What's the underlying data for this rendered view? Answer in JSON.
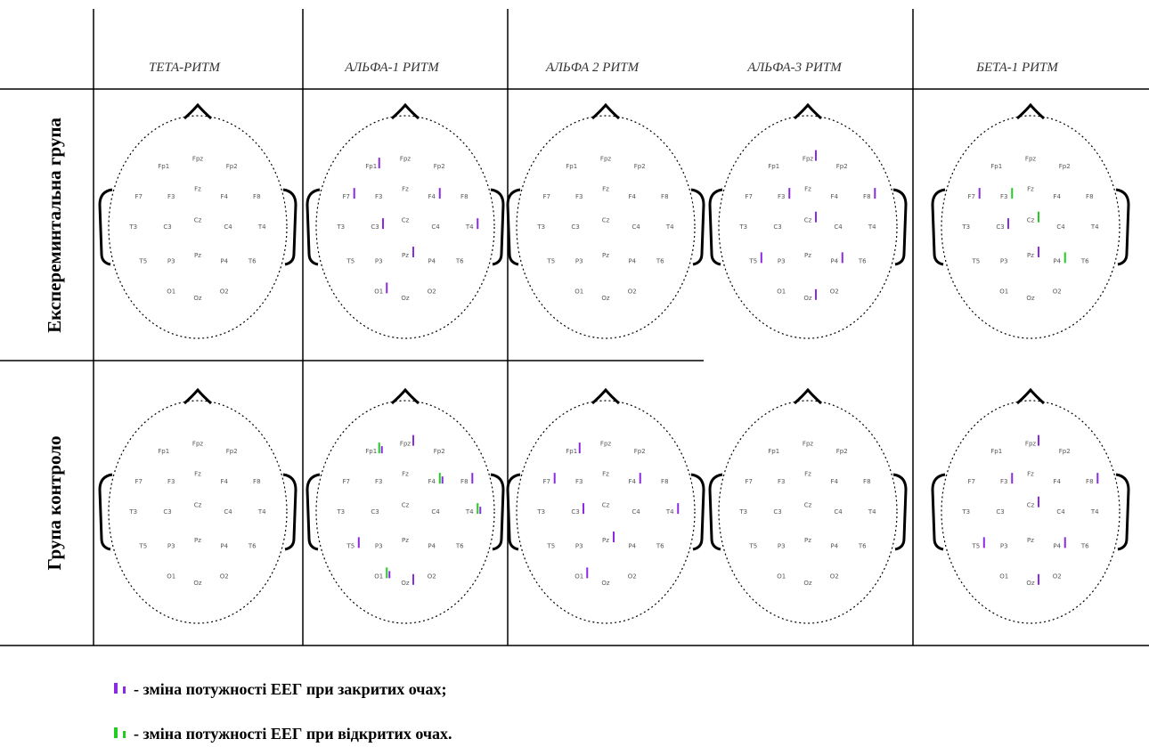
{
  "columns": [
    "ТЕТА-РИТМ",
    "АЛЬФА-1 РИТМ",
    "АЛЬФА 2 РИТМ",
    "АЛЬФА-3 РИТМ",
    "БЕТА-1 РИТМ"
  ],
  "rows": [
    "Експереминтальна група",
    "Група контроло"
  ],
  "electrodes": [
    "Fp1",
    "Fpz",
    "Fp2",
    "F7",
    "F3",
    "Fz",
    "F4",
    "F8",
    "T3",
    "C3",
    "Cz",
    "C4",
    "T4",
    "T5",
    "P3",
    "Pz",
    "P4",
    "T6",
    "O1",
    "Oz",
    "O2"
  ],
  "legend": [
    {
      "text": "- зміна потужності ЕЕГ при закритих очах;"
    },
    {
      "text": "- зміна потужності ЕЕГ при відкритих очах."
    }
  ]
}
